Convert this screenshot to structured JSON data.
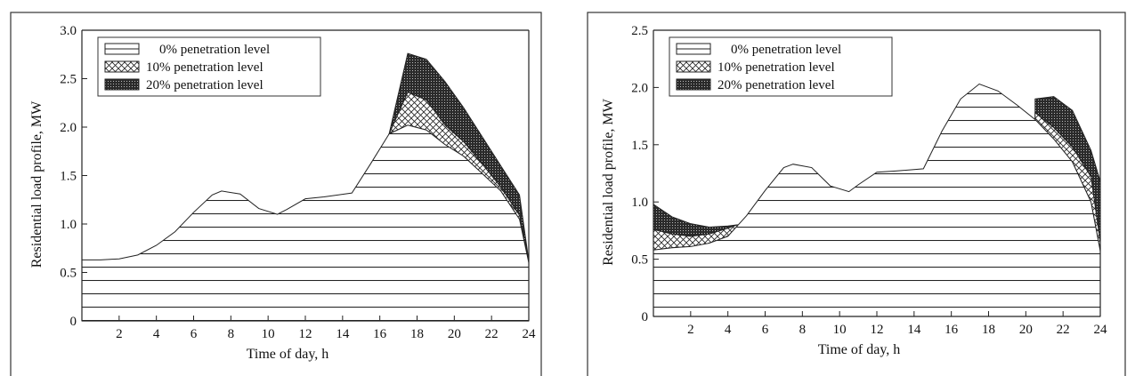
{
  "chart_data": [
    {
      "type": "area",
      "xlabel": "Time of day, h",
      "ylabel": "Residential load profile, MW",
      "xlim": [
        0,
        24
      ],
      "ylim": [
        0,
        3.0
      ],
      "x_ticks": [
        2,
        4,
        6,
        8,
        10,
        12,
        14,
        16,
        18,
        20,
        22,
        24
      ],
      "y_ticks": [
        "0",
        "0.5",
        "1.0",
        "1.5",
        "2.0",
        "2.5",
        "3.0"
      ],
      "legend": {
        "position": "top-left",
        "entries": [
          "0% penetration level",
          "10% penetration level",
          "20% penetration level"
        ]
      },
      "series": [
        {
          "name": "0% penetration level",
          "pattern": "horizontal-lines",
          "x": [
            0,
            1,
            2,
            3,
            4,
            5,
            6,
            7,
            7.5,
            8.5,
            9.5,
            10.5,
            11,
            12,
            13,
            14.5,
            15.5,
            16.5,
            17.5,
            18.5,
            19.5,
            20.5,
            21.5,
            22.5,
            23.5,
            24
          ],
          "values": [
            0.63,
            0.63,
            0.64,
            0.68,
            0.78,
            0.92,
            1.12,
            1.3,
            1.34,
            1.31,
            1.16,
            1.1,
            1.15,
            1.26,
            1.28,
            1.32,
            1.62,
            1.93,
            2.02,
            1.97,
            1.82,
            1.7,
            1.52,
            1.34,
            1.05,
            0.6
          ]
        },
        {
          "name": "10% penetration level",
          "pattern": "crosshatch",
          "x": [
            16.5,
            17.5,
            18.5,
            19.5,
            20.5,
            21.5,
            22.5,
            23.5,
            24
          ],
          "values": [
            1.93,
            2.36,
            2.28,
            2.02,
            1.85,
            1.62,
            1.38,
            1.09,
            0.6
          ]
        },
        {
          "name": "20% penetration level",
          "pattern": "dense-dots",
          "x": [
            16.5,
            17.5,
            18.5,
            19.5,
            20.5,
            21.5,
            22.5,
            23.5,
            24
          ],
          "values": [
            1.93,
            2.76,
            2.7,
            2.47,
            2.2,
            1.9,
            1.6,
            1.3,
            0.62
          ]
        }
      ]
    },
    {
      "type": "area",
      "xlabel": "Time of day, h",
      "ylabel": "Residential load profile, MW",
      "xlim": [
        0,
        24
      ],
      "ylim": [
        0,
        2.5
      ],
      "x_ticks": [
        2,
        4,
        6,
        8,
        10,
        12,
        14,
        16,
        18,
        20,
        22,
        24
      ],
      "y_ticks": [
        "0",
        "0.5",
        "1.0",
        "1.5",
        "2.0",
        "2.5"
      ],
      "legend": {
        "position": "top-left",
        "entries": [
          "0% penetration level",
          "10% penetration level",
          "20% penetration level"
        ]
      },
      "series": [
        {
          "name": "0% penetration level",
          "pattern": "horizontal-lines",
          "x": [
            0,
            1,
            2,
            3,
            4,
            5,
            6,
            7,
            7.5,
            8.5,
            9.5,
            10.5,
            11,
            12,
            13,
            14.5,
            15.5,
            16.5,
            17.5,
            18.5,
            19.5,
            20.5,
            21.5,
            22.5,
            23.5,
            24
          ],
          "values": [
            0.58,
            0.6,
            0.61,
            0.64,
            0.7,
            0.88,
            1.1,
            1.3,
            1.33,
            1.3,
            1.14,
            1.09,
            1.15,
            1.26,
            1.27,
            1.29,
            1.62,
            1.9,
            2.03,
            1.97,
            1.85,
            1.72,
            1.55,
            1.35,
            1.0,
            0.57
          ]
        },
        {
          "name": "10% penetration level",
          "pattern": "crosshatch",
          "x": [
            0,
            1,
            2,
            3,
            4,
            4.5,
            20.5,
            21.5,
            22.5,
            23.5,
            24
          ],
          "values": [
            0.76,
            0.72,
            0.7,
            0.72,
            0.77,
            0.8,
            1.78,
            1.65,
            1.48,
            1.22,
            0.65
          ]
        },
        {
          "name": "20% penetration level",
          "pattern": "dense-dots",
          "x": [
            0,
            1,
            2,
            3,
            4,
            4.5,
            20.5,
            21.5,
            22.5,
            23.5,
            24
          ],
          "values": [
            0.98,
            0.87,
            0.81,
            0.78,
            0.79,
            0.8,
            1.9,
            1.92,
            1.8,
            1.45,
            1.18
          ]
        }
      ]
    }
  ]
}
